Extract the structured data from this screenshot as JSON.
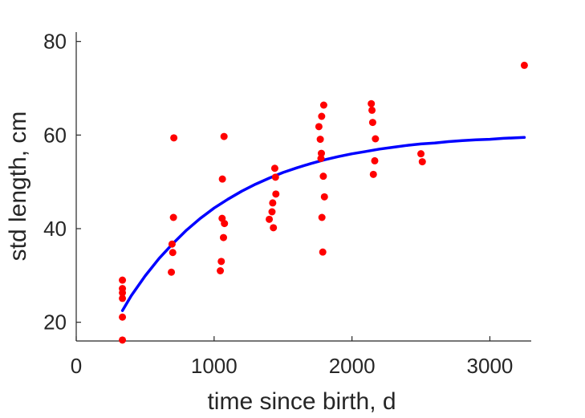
{
  "chart_data": {
    "type": "scatter",
    "title": "",
    "xlabel": "time since birth, d",
    "ylabel": "std length, cm",
    "xlim": [
      0,
      3300
    ],
    "ylim": [
      16,
      82
    ],
    "xticks": [
      0,
      1000,
      2000,
      3000
    ],
    "yticks": [
      20,
      40,
      60,
      80
    ],
    "grid": false,
    "legend": "none",
    "colors": {
      "points": "#ff0000",
      "curve": "#0000ff",
      "axes": "#262626"
    },
    "points": [
      [
        335,
        29.0
      ],
      [
        335,
        27.2
      ],
      [
        335,
        26.3
      ],
      [
        335,
        25.1
      ],
      [
        335,
        21.1
      ],
      [
        335,
        16.2
      ],
      [
        690,
        30.7
      ],
      [
        695,
        36.7
      ],
      [
        700,
        34.9
      ],
      [
        705,
        42.4
      ],
      [
        708,
        59.4
      ],
      [
        1045,
        31.0
      ],
      [
        1052,
        33.0
      ],
      [
        1058,
        42.2
      ],
      [
        1060,
        50.6
      ],
      [
        1068,
        38.1
      ],
      [
        1072,
        59.7
      ],
      [
        1075,
        41.1
      ],
      [
        1400,
        42.0
      ],
      [
        1420,
        43.6
      ],
      [
        1425,
        45.5
      ],
      [
        1430,
        40.2
      ],
      [
        1440,
        52.9
      ],
      [
        1445,
        51.0
      ],
      [
        1448,
        47.4
      ],
      [
        1760,
        61.8
      ],
      [
        1770,
        59.1
      ],
      [
        1775,
        55.0
      ],
      [
        1778,
        56.1
      ],
      [
        1780,
        64.0
      ],
      [
        1782,
        42.4
      ],
      [
        1788,
        35.0
      ],
      [
        1792,
        51.2
      ],
      [
        1795,
        66.4
      ],
      [
        1800,
        46.8
      ],
      [
        2140,
        66.7
      ],
      [
        2145,
        65.3
      ],
      [
        2150,
        62.7
      ],
      [
        2155,
        51.6
      ],
      [
        2165,
        54.5
      ],
      [
        2170,
        59.2
      ],
      [
        2500,
        56.0
      ],
      [
        2510,
        54.3
      ],
      [
        3250,
        74.9
      ]
    ],
    "curve": {
      "x": [
        335,
        400,
        500,
        600,
        700,
        800,
        900,
        1000,
        1100,
        1200,
        1300,
        1400,
        1500,
        1600,
        1700,
        1800,
        1900,
        2000,
        2100,
        2200,
        2300,
        2400,
        2500,
        2600,
        2700,
        2800,
        2900,
        3000,
        3100,
        3250
      ],
      "y": [
        22.5,
        25.7,
        29.9,
        33.6,
        36.8,
        39.7,
        42.2,
        44.4,
        46.3,
        48.0,
        49.5,
        50.8,
        52.0,
        53.0,
        53.9,
        54.7,
        55.4,
        56.0,
        56.5,
        57.0,
        57.4,
        57.8,
        58.1,
        58.3,
        58.6,
        58.8,
        59.0,
        59.1,
        59.3,
        59.5
      ]
    }
  }
}
